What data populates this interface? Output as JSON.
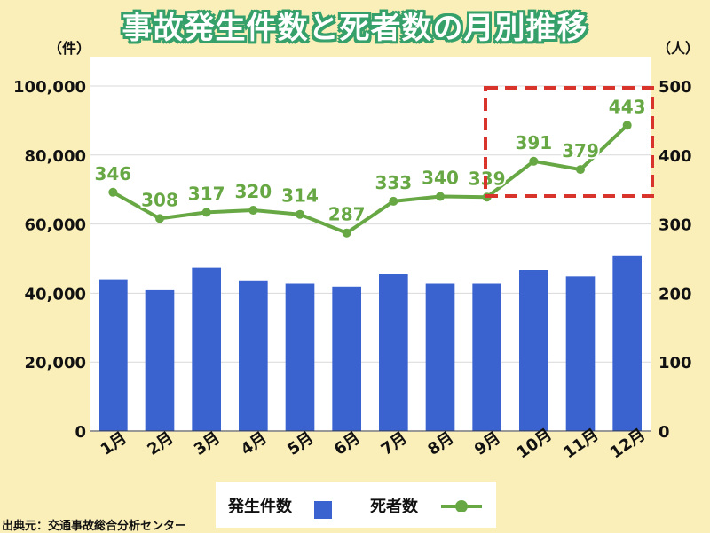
{
  "title": "事故発生件数と死者数の月別推移",
  "source": "出典元：交通事故総合分析センター",
  "chart_data": {
    "type": "bar",
    "categories": [
      "1月",
      "2月",
      "3月",
      "4月",
      "5月",
      "6月",
      "7月",
      "8月",
      "9月",
      "10月",
      "11月",
      "12月"
    ],
    "left_axis": {
      "unit_label": "（件）",
      "ylim": [
        0,
        100000
      ],
      "ticks": [
        0,
        20000,
        40000,
        60000,
        80000,
        100000
      ],
      "tick_labels": [
        "0",
        "20,000",
        "40,000",
        "60,000",
        "80,000",
        "100,000"
      ]
    },
    "right_axis": {
      "unit_label": "（人）",
      "ylim": [
        0,
        500
      ],
      "ticks": [
        0,
        100,
        200,
        300,
        400,
        500
      ],
      "tick_labels": [
        "0",
        "100",
        "200",
        "300",
        "400",
        "500"
      ]
    },
    "series": [
      {
        "name": "発生件数",
        "type": "bar",
        "axis": "left",
        "color": "#3a63cf",
        "values": [
          43800,
          40900,
          47400,
          43500,
          42800,
          41700,
          45500,
          42800,
          42800,
          46700,
          44900,
          50700
        ]
      },
      {
        "name": "死者数",
        "type": "line",
        "axis": "right",
        "color": "#67a844",
        "values": [
          346,
          308,
          317,
          320,
          314,
          287,
          333,
          340,
          339,
          391,
          379,
          443
        ],
        "data_labels": [
          "346",
          "308",
          "317",
          "320",
          "314",
          "287",
          "333",
          "340",
          "339",
          "391",
          "379",
          "443"
        ]
      }
    ],
    "highlight": {
      "from_index": 9,
      "to_index": 11,
      "color": "#d9342c",
      "style": "dashed"
    },
    "grid": true,
    "legend_placement": "bottom"
  }
}
